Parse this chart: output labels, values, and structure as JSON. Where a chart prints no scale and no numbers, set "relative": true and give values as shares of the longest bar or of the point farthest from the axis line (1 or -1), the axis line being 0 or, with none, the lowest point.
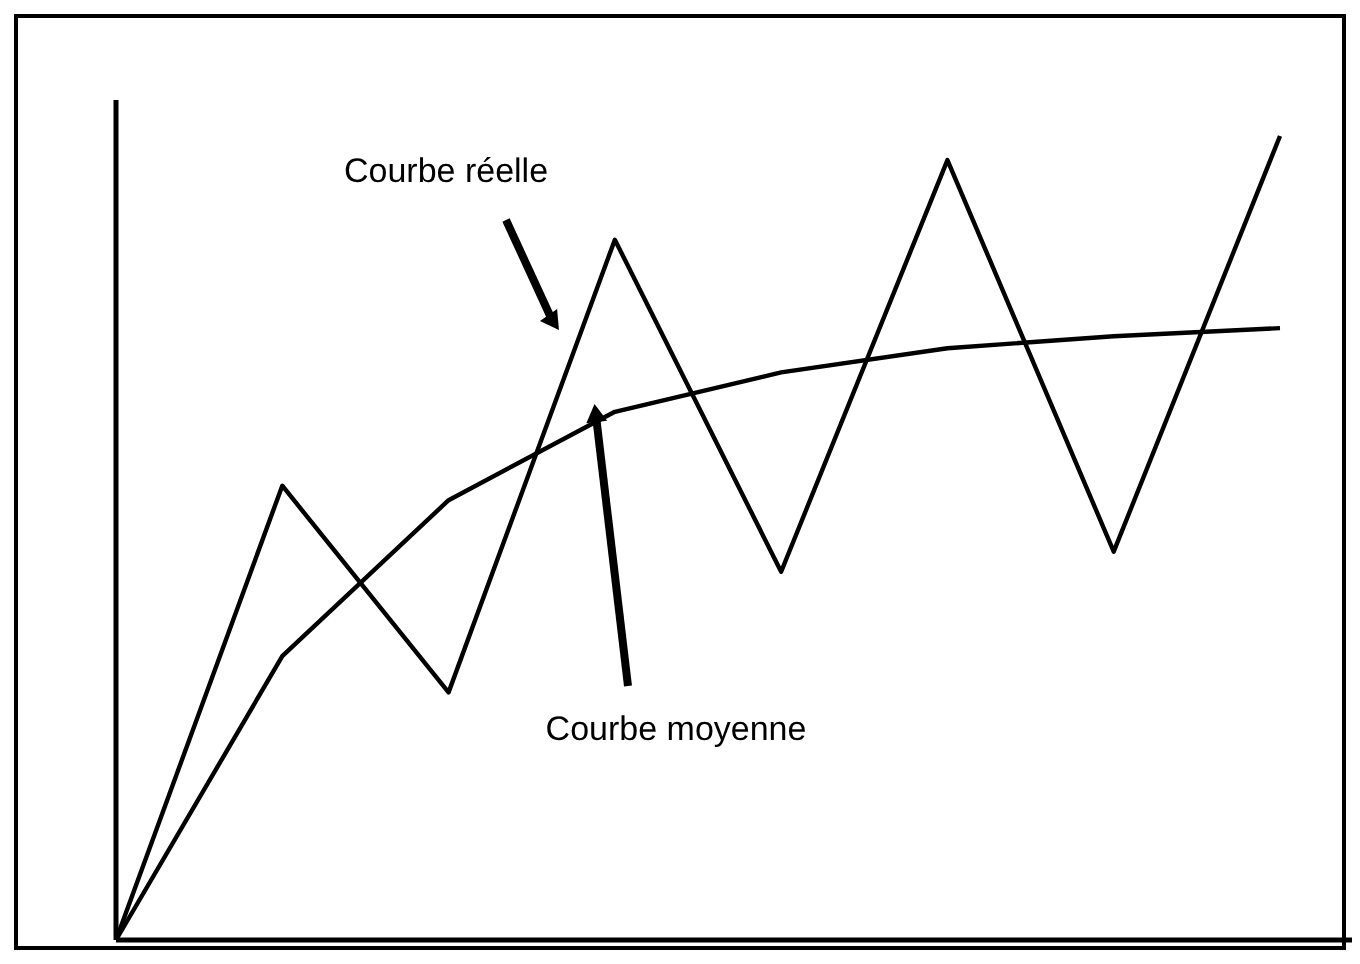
{
  "chart_data": {
    "type": "line",
    "relative": true,
    "marker": "none",
    "line_style": "solid",
    "categories": [
      null,
      null,
      null,
      null,
      null,
      null,
      null,
      null
    ],
    "series": [
      {
        "name": "Courbe réelle",
        "color": "#000000",
        "values": [
          0,
          0.565,
          0.308,
          0.871,
          0.458,
          0.97,
          0.483,
          1.0
        ]
      },
      {
        "name": "Courbe moyenne",
        "color": "#000000",
        "values": [
          0,
          0.353,
          0.547,
          0.657,
          0.706,
          0.736,
          0.751,
          0.761
        ]
      }
    ]
  }
}
